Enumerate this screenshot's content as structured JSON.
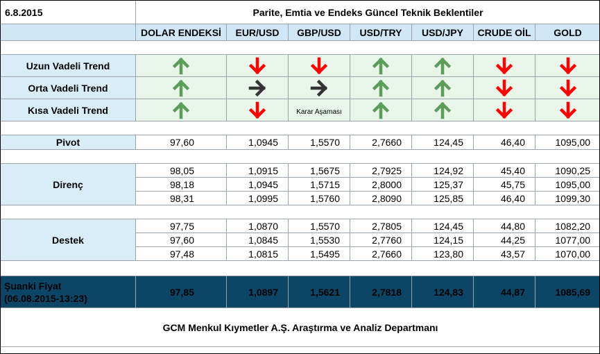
{
  "header": {
    "date": "6.8.2015",
    "title": "Parite, Emtia ve Endeks Güncel Teknik Beklentiler"
  },
  "columns": [
    "DOLAR ENDEKSİ",
    "EUR/USD",
    "GBP/USD",
    "USD/TRY",
    "USD/JPY",
    "CRUDE OİL",
    "GOLD"
  ],
  "colors": {
    "up": "#5a9e5a",
    "down": "#ff0000",
    "side": "#333333",
    "header_bg": "#cfe7f7",
    "price_bg": "#0d4566"
  },
  "trends": [
    {
      "label": "Uzun Vadeli Trend",
      "arrows": [
        "up-icon",
        "down-icon",
        "down-icon",
        "up-icon",
        "up-icon",
        "down-icon",
        "down-icon"
      ]
    },
    {
      "label": "Orta Vadeli Trend",
      "arrows": [
        "up-icon",
        "right-icon",
        "right-icon",
        "up-icon",
        "up-icon",
        "down-icon",
        "down-icon"
      ]
    },
    {
      "label": "Kısa Vadeli Trend",
      "arrows": [
        "up-icon",
        "down-icon",
        "text",
        "up-icon",
        "up-icon",
        "down-icon",
        "down-icon"
      ],
      "note": "Karar Aşaması"
    }
  ],
  "pivot": {
    "label": "Pivot",
    "values": [
      "97,60",
      "1,0945",
      "1,5570",
      "2,7660",
      "124,45",
      "46,40",
      "1095,00"
    ]
  },
  "resistance": {
    "label": "Direnç",
    "rows": [
      [
        "98,05",
        "1,0915",
        "1,5675",
        "2,7925",
        "124,92",
        "45,40",
        "1090,25"
      ],
      [
        "98,18",
        "1,0945",
        "1,5715",
        "2,8000",
        "125,37",
        "45,75",
        "1095,00"
      ],
      [
        "98,31",
        "1,0995",
        "1,5760",
        "2,8090",
        "125,85",
        "46,40",
        "1099,30"
      ]
    ]
  },
  "support": {
    "label": "Destek",
    "rows": [
      [
        "97,75",
        "1,0870",
        "1,5570",
        "2,7805",
        "124,45",
        "44,80",
        "1082,20"
      ],
      [
        "97,60",
        "1,0845",
        "1,5530",
        "2,7760",
        "124,15",
        "44,25",
        "1077,00"
      ],
      [
        "97,48",
        "1,0815",
        "1,5495",
        "2,7660",
        "123,80",
        "43,57",
        "1070,00"
      ]
    ]
  },
  "current_price": {
    "label_line1": "Şuanki Fiyat",
    "label_line2": "(06.08.2015-13:23)",
    "values": [
      "97,85",
      "1,0897",
      "1,5621",
      "2,7818",
      "124,83",
      "44,87",
      "1085,69"
    ]
  },
  "footer": "GCM Menkul Kıymetler A.Ş. Araştırma ve Analiz Departmanı"
}
